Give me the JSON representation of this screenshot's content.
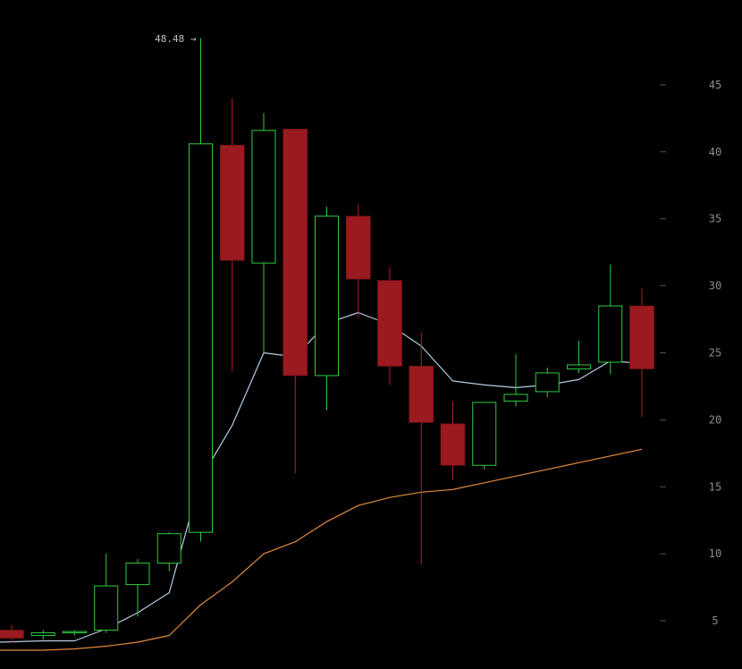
{
  "colors": {
    "background": "#000000",
    "up": "#2ecc40",
    "down": "#9b1a1f",
    "down_wick": "#b52027",
    "ma_short": "#b4cde6",
    "ma_long": "#e38b3c",
    "tick": "#8c8c8c"
  },
  "chart_data": {
    "type": "candlestick",
    "title": "",
    "xlabel": "",
    "ylabel": "",
    "ylim": [
      2.6,
      50
    ],
    "y_ticks": [
      5,
      10,
      15,
      20,
      25,
      30,
      35,
      40,
      45
    ],
    "y_tick_labels": [
      "5",
      "10",
      "15",
      "20",
      "25",
      "30",
      "35",
      "40",
      "45"
    ],
    "grid": false,
    "legend": "none",
    "max_annotation": {
      "text": "48.48 →",
      "value": 48.48,
      "candle_index": 6
    },
    "candles": [
      {
        "open": 4.3,
        "high": 4.7,
        "low": 3.4,
        "close": 3.7
      },
      {
        "open": 3.9,
        "high": 4.3,
        "low": 3.6,
        "close": 4.1
      },
      {
        "open": 4.1,
        "high": 4.3,
        "low": 3.9,
        "close": 4.2
      },
      {
        "open": 4.3,
        "high": 10.0,
        "low": 4.1,
        "close": 7.6
      },
      {
        "open": 7.7,
        "high": 9.6,
        "low": 5.3,
        "close": 9.3
      },
      {
        "open": 9.3,
        "high": 11.6,
        "low": 8.7,
        "close": 11.5
      },
      {
        "open": 11.6,
        "high": 48.48,
        "low": 10.9,
        "close": 40.6
      },
      {
        "open": 40.5,
        "high": 44.0,
        "low": 23.6,
        "close": 31.9
      },
      {
        "open": 31.7,
        "high": 42.9,
        "low": 25.0,
        "close": 41.6
      },
      {
        "open": 41.7,
        "high": 41.7,
        "low": 16.0,
        "close": 23.3
      },
      {
        "open": 23.3,
        "high": 35.9,
        "low": 20.7,
        "close": 35.2
      },
      {
        "open": 35.2,
        "high": 36.1,
        "low": 27.6,
        "close": 30.5
      },
      {
        "open": 30.4,
        "high": 31.4,
        "low": 22.6,
        "close": 24.0
      },
      {
        "open": 24.0,
        "high": 26.5,
        "low": 9.2,
        "close": 19.8
      },
      {
        "open": 19.7,
        "high": 21.4,
        "low": 15.5,
        "close": 16.6
      },
      {
        "open": 16.6,
        "high": 21.3,
        "low": 16.3,
        "close": 21.3
      },
      {
        "open": 21.4,
        "high": 24.9,
        "low": 21.0,
        "close": 21.9
      },
      {
        "open": 22.1,
        "high": 23.9,
        "low": 21.7,
        "close": 23.5
      },
      {
        "open": 23.8,
        "high": 25.9,
        "low": 23.5,
        "close": 24.1
      },
      {
        "open": 24.3,
        "high": 31.6,
        "low": 23.4,
        "close": 28.5
      },
      {
        "open": 28.5,
        "high": 29.8,
        "low": 20.2,
        "close": 23.8
      }
    ],
    "series": [
      {
        "values": [
          3.4,
          3.5,
          3.5,
          4.4,
          5.6,
          7.1,
          15.6,
          19.6,
          25.0,
          24.7,
          27.2,
          28.0,
          27.1,
          25.5,
          22.9,
          22.6,
          22.4,
          22.6,
          23.0,
          24.4,
          24.2
        ]
      },
      {
        "values": [
          2.8,
          2.8,
          2.9,
          3.1,
          3.4,
          3.9,
          6.2,
          7.9,
          10.0,
          10.9,
          12.4,
          13.6,
          14.2,
          14.6,
          14.8,
          15.3,
          15.8,
          16.3,
          16.8,
          17.3,
          17.8
        ]
      }
    ]
  }
}
